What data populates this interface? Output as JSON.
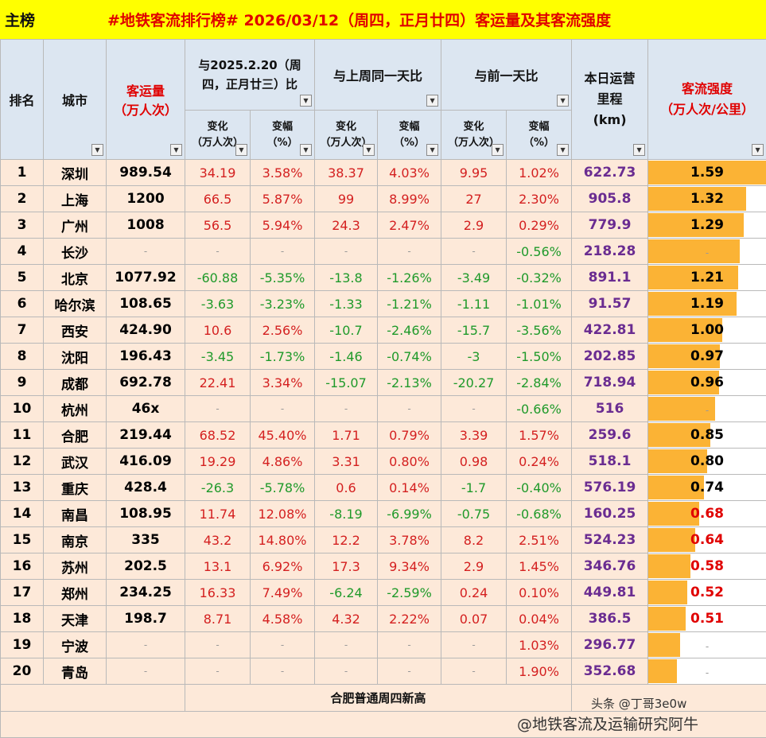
{
  "title_bar": {
    "main_tag": "主榜",
    "title": "#地铁客流排行榜# 2026/03/12（周四，正月廿四）客运量及其客流强度"
  },
  "headers": {
    "rank": "排名",
    "city": "城市",
    "volume_l1": "客运量",
    "volume_l2": "（万人次）",
    "cmp_lastyear_l1": "与2025.2.20（周",
    "cmp_lastyear_l2": "四，正月廿三）比",
    "cmp_lastweek": "与上周同一天比",
    "cmp_prevday": "与前一天比",
    "mileage_l1": "本日运营",
    "mileage_l2": "里程",
    "mileage_l3": "(km)",
    "intensity_l1": "客流强度",
    "intensity_l2": "（万人次/公里）",
    "change_l1": "变化",
    "change_l2": "（万人次）",
    "rate_l1": "变幅",
    "rate_l2": "（%）",
    "dropdown_glyph": "▼"
  },
  "rows": [
    {
      "rank": "1",
      "city": "深圳",
      "volume": "989.54",
      "y_change": "34.19",
      "y_rate": "3.58%",
      "w_change": "38.37",
      "w_rate": "4.03%",
      "d_change": "9.95",
      "d_rate": "1.02%",
      "mileage": "622.73",
      "intensity": "1.59",
      "bar": 1.0
    },
    {
      "rank": "2",
      "city": "上海",
      "volume": "1200",
      "y_change": "66.5",
      "y_rate": "5.87%",
      "w_change": "99",
      "w_rate": "8.99%",
      "d_change": "27",
      "d_rate": "2.30%",
      "mileage": "905.8",
      "intensity": "1.32",
      "bar": 0.83
    },
    {
      "rank": "3",
      "city": "广州",
      "volume": "1008",
      "y_change": "56.5",
      "y_rate": "5.94%",
      "w_change": "24.3",
      "w_rate": "2.47%",
      "d_change": "2.9",
      "d_rate": "0.29%",
      "mileage": "779.9",
      "intensity": "1.29",
      "bar": 0.81
    },
    {
      "rank": "4",
      "city": "长沙",
      "volume": "-",
      "y_change": "-",
      "y_rate": "-",
      "w_change": "-",
      "w_rate": "-",
      "d_change": "-",
      "d_rate": "-0.56%",
      "mileage": "218.28",
      "intensity": "-",
      "bar": 0.78
    },
    {
      "rank": "5",
      "city": "北京",
      "volume": "1077.92",
      "y_change": "-60.88",
      "y_rate": "-5.35%",
      "w_change": "-13.8",
      "w_rate": "-1.26%",
      "d_change": "-3.49",
      "d_rate": "-0.32%",
      "mileage": "891.1",
      "intensity": "1.21",
      "bar": 0.76
    },
    {
      "rank": "6",
      "city": "哈尔滨",
      "volume": "108.65",
      "y_change": "-3.63",
      "y_rate": "-3.23%",
      "w_change": "-1.33",
      "w_rate": "-1.21%",
      "d_change": "-1.11",
      "d_rate": "-1.01%",
      "mileage": "91.57",
      "intensity": "1.19",
      "bar": 0.75
    },
    {
      "rank": "7",
      "city": "西安",
      "volume": "424.90",
      "y_change": "10.6",
      "y_rate": "2.56%",
      "w_change": "-10.7",
      "w_rate": "-2.46%",
      "d_change": "-15.7",
      "d_rate": "-3.56%",
      "mileage": "422.81",
      "intensity": "1.00",
      "bar": 0.63
    },
    {
      "rank": "8",
      "city": "沈阳",
      "volume": "196.43",
      "y_change": "-3.45",
      "y_rate": "-1.73%",
      "w_change": "-1.46",
      "w_rate": "-0.74%",
      "d_change": "-3",
      "d_rate": "-1.50%",
      "mileage": "202.85",
      "intensity": "0.97",
      "bar": 0.61
    },
    {
      "rank": "9",
      "city": "成都",
      "volume": "692.78",
      "y_change": "22.41",
      "y_rate": "3.34%",
      "w_change": "-15.07",
      "w_rate": "-2.13%",
      "d_change": "-20.27",
      "d_rate": "-2.84%",
      "mileage": "718.94",
      "intensity": "0.96",
      "bar": 0.6
    },
    {
      "rank": "10",
      "city": "杭州",
      "volume": "46x",
      "y_change": "-",
      "y_rate": "-",
      "w_change": "-",
      "w_rate": "-",
      "d_change": "-",
      "d_rate": "-0.66%",
      "mileage": "516",
      "intensity": "-",
      "bar": 0.57
    },
    {
      "rank": "11",
      "city": "合肥",
      "volume": "219.44",
      "y_change": "68.52",
      "y_rate": "45.40%",
      "w_change": "1.71",
      "w_rate": "0.79%",
      "d_change": "3.39",
      "d_rate": "1.57%",
      "mileage": "259.6",
      "intensity": "0.85",
      "bar": 0.53
    },
    {
      "rank": "12",
      "city": "武汉",
      "volume": "416.09",
      "y_change": "19.29",
      "y_rate": "4.86%",
      "w_change": "3.31",
      "w_rate": "0.80%",
      "d_change": "0.98",
      "d_rate": "0.24%",
      "mileage": "518.1",
      "intensity": "0.80",
      "bar": 0.5
    },
    {
      "rank": "13",
      "city": "重庆",
      "volume": "428.4",
      "y_change": "-26.3",
      "y_rate": "-5.78%",
      "w_change": "0.6",
      "w_rate": "0.14%",
      "d_change": "-1.7",
      "d_rate": "-0.40%",
      "mileage": "576.19",
      "intensity": "0.74",
      "bar": 0.47
    },
    {
      "rank": "14",
      "city": "南昌",
      "volume": "108.95",
      "y_change": "11.74",
      "y_rate": "12.08%",
      "w_change": "-8.19",
      "w_rate": "-6.99%",
      "d_change": "-0.75",
      "d_rate": "-0.68%",
      "mileage": "160.25",
      "intensity": "0.68",
      "bar": 0.43
    },
    {
      "rank": "15",
      "city": "南京",
      "volume": "335",
      "y_change": "43.2",
      "y_rate": "14.80%",
      "w_change": "12.2",
      "w_rate": "3.78%",
      "d_change": "8.2",
      "d_rate": "2.51%",
      "mileage": "524.23",
      "intensity": "0.64",
      "bar": 0.4
    },
    {
      "rank": "16",
      "city": "苏州",
      "volume": "202.5",
      "y_change": "13.1",
      "y_rate": "6.92%",
      "w_change": "17.3",
      "w_rate": "9.34%",
      "d_change": "2.9",
      "d_rate": "1.45%",
      "mileage": "346.76",
      "intensity": "0.58",
      "bar": 0.36
    },
    {
      "rank": "17",
      "city": "郑州",
      "volume": "234.25",
      "y_change": "16.33",
      "y_rate": "7.49%",
      "w_change": "-6.24",
      "w_rate": "-2.59%",
      "d_change": "0.24",
      "d_rate": "0.10%",
      "mileage": "449.81",
      "intensity": "0.52",
      "bar": 0.33
    },
    {
      "rank": "18",
      "city": "天津",
      "volume": "198.7",
      "y_change": "8.71",
      "y_rate": "4.58%",
      "w_change": "4.32",
      "w_rate": "2.22%",
      "d_change": "0.07",
      "d_rate": "0.04%",
      "mileage": "386.5",
      "intensity": "0.51",
      "bar": 0.32
    },
    {
      "rank": "19",
      "city": "宁波",
      "volume": "-",
      "y_change": "-",
      "y_rate": "-",
      "w_change": "-",
      "w_rate": "-",
      "d_change": "-",
      "d_rate": "1.03%",
      "mileage": "296.77",
      "intensity": "-",
      "bar": 0.27
    },
    {
      "rank": "20",
      "city": "青岛",
      "volume": "-",
      "y_change": "-",
      "y_rate": "-",
      "w_change": "-",
      "w_rate": "-",
      "d_change": "-",
      "d_rate": "1.90%",
      "mileage": "352.68",
      "intensity": "-",
      "bar": 0.24
    }
  ],
  "note": "合肥普通周四新高",
  "watermark": {
    "toutiao": "头条 @丁哥3e0w",
    "weibo": "@地铁客流及运输研究阿牛"
  },
  "colors": {
    "title_bg": "#ffff00",
    "title_text": "#e00000",
    "header_bg": "#dce6f1",
    "row_bg": "#fde9d9",
    "positive": "#d42020",
    "negative": "#1f9a2a",
    "mileage": "#6a2c91",
    "bar": "#fbb335"
  }
}
